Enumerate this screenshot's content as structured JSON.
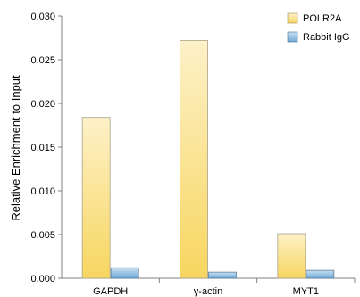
{
  "chart_data": {
    "type": "bar",
    "title": "",
    "xlabel": "",
    "ylabel": "Relative Enrichment to Input",
    "categories": [
      "GAPDH",
      "γ-actin",
      "MYT1"
    ],
    "series": [
      {
        "name": "POLR2A",
        "values": [
          0.0184,
          0.0272,
          0.0051
        ],
        "color": "#f7d97a"
      },
      {
        "name": "Rabbit IgG",
        "values": [
          0.0012,
          0.0007,
          0.0009
        ],
        "color": "#7fb2d8"
      }
    ],
    "ylim": [
      0,
      0.03
    ],
    "yticks": [
      "0.000",
      "0.005",
      "0.010",
      "0.015",
      "0.020",
      "0.025",
      "0.030"
    ],
    "grid": false,
    "legend_position": "top-right"
  }
}
